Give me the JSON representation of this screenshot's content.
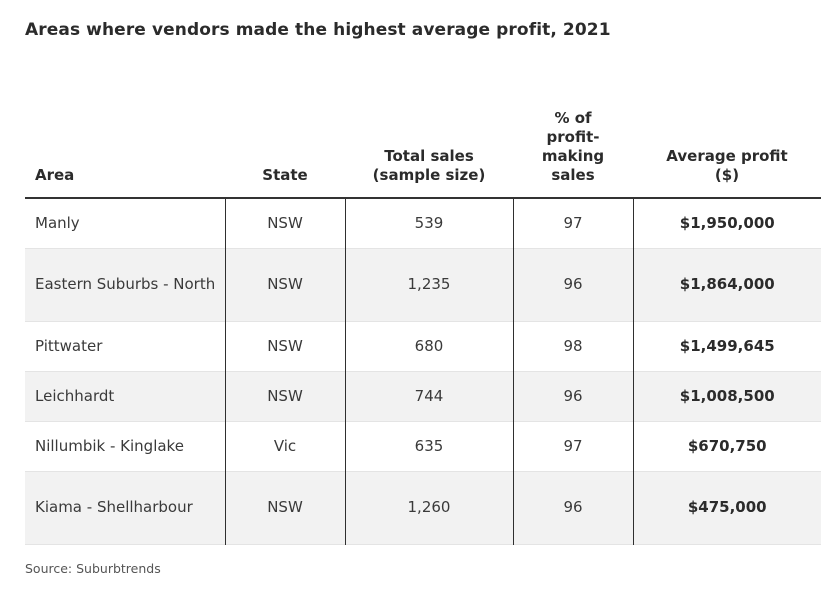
{
  "title": "Areas where vendors made the highest average profit, 2021",
  "source": "Source: Suburbtrends",
  "chart_data": {
    "type": "table",
    "title": "Areas where vendors made the highest average profit, 2021",
    "columns": [
      {
        "lines": [
          "Area"
        ]
      },
      {
        "lines": [
          "State"
        ]
      },
      {
        "lines": [
          "Total sales",
          "(sample size)"
        ]
      },
      {
        "lines": [
          "% of",
          "profit-",
          "making",
          "sales"
        ]
      },
      {
        "lines": [
          "Average profit",
          "($)"
        ]
      }
    ],
    "rows": [
      {
        "area": "Manly",
        "state": "NSW",
        "total_sales": "539",
        "pct_profit": "97",
        "avg_profit": "$1,950,000"
      },
      {
        "area": "Eastern Suburbs - North",
        "state": "NSW",
        "total_sales": "1,235",
        "pct_profit": "96",
        "avg_profit": "$1,864,000"
      },
      {
        "area": "Pittwater",
        "state": "NSW",
        "total_sales": "680",
        "pct_profit": "98",
        "avg_profit": "$1,499,645"
      },
      {
        "area": "Leichhardt",
        "state": "NSW",
        "total_sales": "744",
        "pct_profit": "96",
        "avg_profit": "$1,008,500"
      },
      {
        "area": "Nillumbik - Kinglake",
        "state": "Vic",
        "total_sales": "635",
        "pct_profit": "97",
        "avg_profit": "$670,750"
      },
      {
        "area": "Kiama - Shellharbour",
        "state": "NSW",
        "total_sales": "1,260",
        "pct_profit": "96",
        "avg_profit": "$475,000"
      }
    ],
    "source": "Source: Suburbtrends"
  }
}
